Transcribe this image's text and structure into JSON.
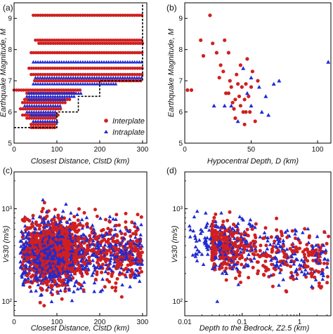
{
  "colors": {
    "interplate": "#d11f1f",
    "intraplate": "#1f2bd1",
    "threshold": "#000000"
  },
  "panels": {
    "a": {
      "label": "(a)",
      "xlabel": "Closest Distance, ClstD (km)",
      "ylabel": "Earthquake Magnitude, M",
      "xticks": [
        "0",
        "100",
        "200",
        "300"
      ],
      "yticks": [
        "5",
        "6",
        "7",
        "8",
        "9"
      ],
      "legend": {
        "interplate": "Interplate",
        "intraplate": "Intraplate"
      }
    },
    "b": {
      "label": "(b)",
      "xlabel": "Hypocentral Depth, D (km)",
      "ylabel": "Earthquake Magnitude, M",
      "xticks": [
        "0",
        "50",
        "100"
      ],
      "yticks": [
        "5",
        "6",
        "7",
        "8",
        "9"
      ]
    },
    "c": {
      "label": "(c)",
      "xlabel": "Closest Distance, ClstD (km)",
      "ylabel": "Vs30 (m/s)",
      "xticks": [
        "0",
        "100",
        "200",
        "300"
      ],
      "yticks": [
        "10²",
        "10³"
      ]
    },
    "d": {
      "label": "(d)",
      "xlabel": "Depth to the Bedrock, Z2.5 (km)",
      "ylabel": "Vs30 (m/s)",
      "xticks": [
        "0.01",
        "0.1",
        "1"
      ],
      "yticks": [
        "10²",
        "10³"
      ]
    }
  },
  "chart_data": [
    {
      "panel": "a",
      "type": "scatter",
      "xlabel": "Closest Distance, ClstD (km)",
      "ylabel": "Earthquake Magnitude, M",
      "xlim": [
        0,
        310
      ],
      "ylim": [
        5,
        9.5
      ],
      "legend_position": "bottom-right",
      "series": [
        {
          "name": "Interplate",
          "marker": "circle",
          "bands": [
            {
              "m": 9.1,
              "x0": 45,
              "x1": 300
            },
            {
              "m": 8.3,
              "x0": 50,
              "x1": 300
            },
            {
              "m": 8.2,
              "x0": 58,
              "x1": 300
            },
            {
              "m": 7.9,
              "x0": 40,
              "x1": 300
            },
            {
              "m": 7.4,
              "x0": 35,
              "x1": 300
            },
            {
              "m": 7.2,
              "x0": 40,
              "x1": 300
            },
            {
              "m": 7.0,
              "x0": 48,
              "x1": 300
            },
            {
              "m": 6.7,
              "x0": 0,
              "x1": 155
            },
            {
              "m": 6.6,
              "x0": 30,
              "x1": 140
            },
            {
              "m": 6.4,
              "x0": 25,
              "x1": 130
            },
            {
              "m": 6.3,
              "x0": 20,
              "x1": 120
            },
            {
              "m": 6.1,
              "x0": 15,
              "x1": 110
            },
            {
              "m": 5.9,
              "x0": 20,
              "x1": 105
            },
            {
              "m": 5.8,
              "x0": 30,
              "x1": 100
            },
            {
              "m": 5.6,
              "x0": 40,
              "x1": 100
            },
            {
              "m": 5.5,
              "x0": 40,
              "x1": 100
            }
          ]
        },
        {
          "name": "Intraplate",
          "marker": "triangle",
          "bands": [
            {
              "m": 7.6,
              "x0": 45,
              "x1": 300
            },
            {
              "m": 7.1,
              "x0": 50,
              "x1": 300
            },
            {
              "m": 6.9,
              "x0": 45,
              "x1": 240
            },
            {
              "m": 6.6,
              "x0": 35,
              "x1": 160
            },
            {
              "m": 6.5,
              "x0": 30,
              "x1": 140
            },
            {
              "m": 6.4,
              "x0": 35,
              "x1": 120
            },
            {
              "m": 6.2,
              "x0": 25,
              "x1": 110
            },
            {
              "m": 6.0,
              "x0": 30,
              "x1": 100
            },
            {
              "m": 5.9,
              "x0": 40,
              "x1": 100
            },
            {
              "m": 5.7,
              "x0": 45,
              "x1": 100
            }
          ]
        }
      ],
      "threshold_line": {
        "style": "dashed",
        "points": [
          [
            0,
            5.5
          ],
          [
            100,
            5.5
          ],
          [
            100,
            6.0
          ],
          [
            150,
            6.0
          ],
          [
            150,
            6.5
          ],
          [
            200,
            6.5
          ],
          [
            200,
            7.0
          ],
          [
            300,
            7.0
          ],
          [
            300,
            9.5
          ]
        ]
      }
    },
    {
      "panel": "b",
      "type": "scatter",
      "xlabel": "Hypocentral Depth, D (km)",
      "ylabel": "Earthquake Magnitude, M",
      "xlim": [
        0,
        110
      ],
      "ylim": [
        5,
        9.5
      ],
      "series": [
        {
          "name": "Interplate",
          "points": [
            [
              2,
              6.7
            ],
            [
              5,
              6.7
            ],
            [
              12,
              8.3
            ],
            [
              14,
              7.8
            ],
            [
              19,
              9.1
            ],
            [
              21,
              8.2
            ],
            [
              24,
              7.9
            ],
            [
              26,
              7.1
            ],
            [
              29,
              7.3
            ],
            [
              31,
              6.6
            ],
            [
              33,
              7.9
            ],
            [
              34,
              7.0
            ],
            [
              35,
              6.8
            ],
            [
              36,
              6.3
            ],
            [
              37,
              6.1
            ],
            [
              38,
              6.4
            ],
            [
              39,
              7.2
            ],
            [
              40,
              6.9
            ],
            [
              41,
              6.5
            ],
            [
              42,
              7.5
            ],
            [
              42,
              6.2
            ],
            [
              43,
              6.8
            ],
            [
              44,
              6.0
            ],
            [
              45,
              6.4
            ],
            [
              46,
              6.9
            ],
            [
              46,
              6.0
            ],
            [
              47,
              7.7
            ],
            [
              48,
              6.5
            ],
            [
              49,
              6.0
            ],
            [
              50,
              6.8
            ],
            [
              51,
              7.3
            ],
            [
              53,
              5.7
            ],
            [
              38,
              5.8
            ],
            [
              45,
              5.6
            ],
            [
              33,
              6.6
            ],
            [
              27,
              7.5
            ],
            [
              55,
              7.0
            ],
            [
              30,
              8.3
            ]
          ]
        },
        {
          "name": "Intraplate",
          "points": [
            [
              22,
              6.2
            ],
            [
              30,
              6.2
            ],
            [
              35,
              6.2
            ],
            [
              40,
              5.7
            ],
            [
              47,
              6.6
            ],
            [
              50,
              6.2
            ],
            [
              56,
              6.8
            ],
            [
              58,
              6.0
            ],
            [
              61,
              6.5
            ],
            [
              63,
              5.9
            ],
            [
              67,
              6.9
            ],
            [
              71,
              7.0
            ],
            [
              50,
              7.1
            ],
            [
              108,
              7.6
            ],
            [
              44,
              7.4
            ]
          ]
        }
      ]
    },
    {
      "panel": "c",
      "type": "scatter",
      "yscale": "log",
      "xlabel": "Closest Distance, ClstD (km)",
      "ylabel": "Vs30 (m/s)",
      "xlim": [
        0,
        310
      ],
      "ylim": [
        70,
        2500
      ],
      "series": [
        {
          "name": "Interplate",
          "distribution": {
            "count": 1300,
            "x_range": [
              20,
              300
            ],
            "x_mode": 95,
            "vs30_median": 350,
            "vs30_range": [
              90,
              2000
            ]
          }
        },
        {
          "name": "Intraplate",
          "distribution": {
            "count": 1100,
            "x_range": [
              15,
              300
            ],
            "x_mode": 85,
            "vs30_median": 320,
            "vs30_range": [
              90,
              1800
            ]
          }
        }
      ]
    },
    {
      "panel": "d",
      "type": "scatter",
      "xscale": "log",
      "yscale": "log",
      "xlabel": "Depth to the Bedrock, Z2.5 (km)",
      "ylabel": "Vs30 (m/s)",
      "xlim": [
        0.01,
        3.5
      ],
      "ylim": [
        70,
        2500
      ],
      "series": [
        {
          "name": "Interplate",
          "distribution": {
            "count": 420,
            "z_range": [
              0.03,
              3.2
            ],
            "vs30_median": 330,
            "vs30_range": [
              90,
              1800
            ]
          }
        },
        {
          "name": "Intraplate",
          "distribution": {
            "count": 330,
            "z_range": [
              0.012,
              3.2
            ],
            "vs30_median": 350,
            "vs30_range": [
              100,
              1500
            ]
          }
        }
      ]
    }
  ]
}
